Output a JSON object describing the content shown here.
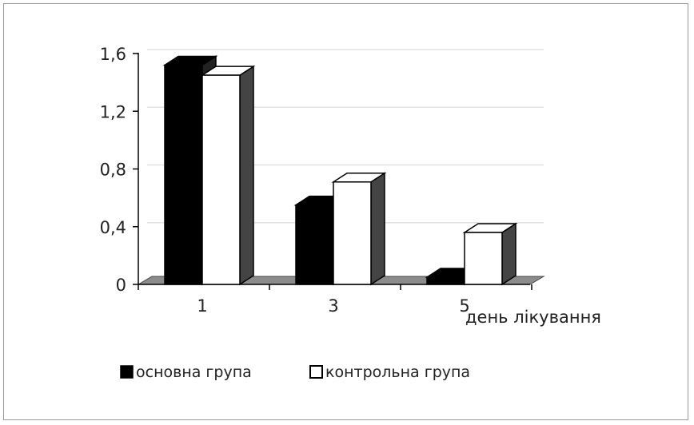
{
  "chart_data": {
    "type": "bar",
    "title": "",
    "xlabel": "день лікування",
    "ylabel": "",
    "categories": [
      "1",
      "3",
      "5"
    ],
    "ylim": [
      0,
      1.6
    ],
    "yticks": [
      "0",
      "0,4",
      "0,8",
      "1,2",
      "1,6"
    ],
    "series": [
      {
        "name": "основна група",
        "values": [
          1.52,
          0.55,
          0.05
        ],
        "color": "#000000"
      },
      {
        "name": "контрольна група",
        "values": [
          1.45,
          0.71,
          0.36
        ],
        "color": "#ffffff"
      }
    ],
    "grid": true,
    "legend": "bottom"
  }
}
